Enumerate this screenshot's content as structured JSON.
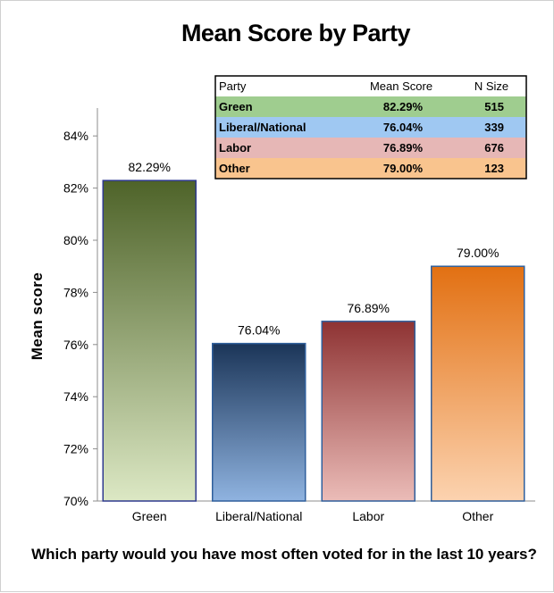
{
  "chart_data": {
    "type": "bar",
    "title": "Mean Score by Party",
    "xlabel": "Which party would you have most often voted for in the last 10 years?",
    "ylabel": "Mean score",
    "ylim": [
      70,
      85
    ],
    "yticks": [
      70,
      72,
      74,
      76,
      78,
      80,
      82,
      84
    ],
    "ytick_labels": [
      "70%",
      "72%",
      "74%",
      "76%",
      "78%",
      "80%",
      "82%",
      "84%"
    ],
    "categories": [
      "Green",
      "Liberal/National",
      "Labor",
      "Other"
    ],
    "values": [
      82.29,
      76.04,
      76.89,
      79.0
    ],
    "value_labels": [
      "82.29%",
      "76.04%",
      "76.89%",
      "79.00%"
    ],
    "bar_colors": [
      {
        "top": "#4e6329",
        "bottom": "#dce8c4",
        "edge": "#2f3a8f"
      },
      {
        "top": "#1b3558",
        "bottom": "#8fb3e0",
        "edge": "#2f5f9c"
      },
      {
        "top": "#8e3333",
        "bottom": "#ebbcb8",
        "edge": "#2f5f9c"
      },
      {
        "top": "#e27012",
        "bottom": "#fcd3b0",
        "edge": "#2f5f9c"
      }
    ],
    "grid": false,
    "table": {
      "headers": [
        "Party",
        "Mean Score",
        "N Size"
      ],
      "rows": [
        {
          "party": "Green",
          "mean": "82.29%",
          "n": "515",
          "color": "#9fcd8f"
        },
        {
          "party": "Liberal/National",
          "mean": "76.04%",
          "n": "339",
          "color": "#9fc8f2"
        },
        {
          "party": "Labor",
          "mean": "76.89%",
          "n": "676",
          "color": "#e6b7b6"
        },
        {
          "party": "Other",
          "mean": "79.00%",
          "n": "123",
          "color": "#f9c48e"
        }
      ]
    }
  }
}
